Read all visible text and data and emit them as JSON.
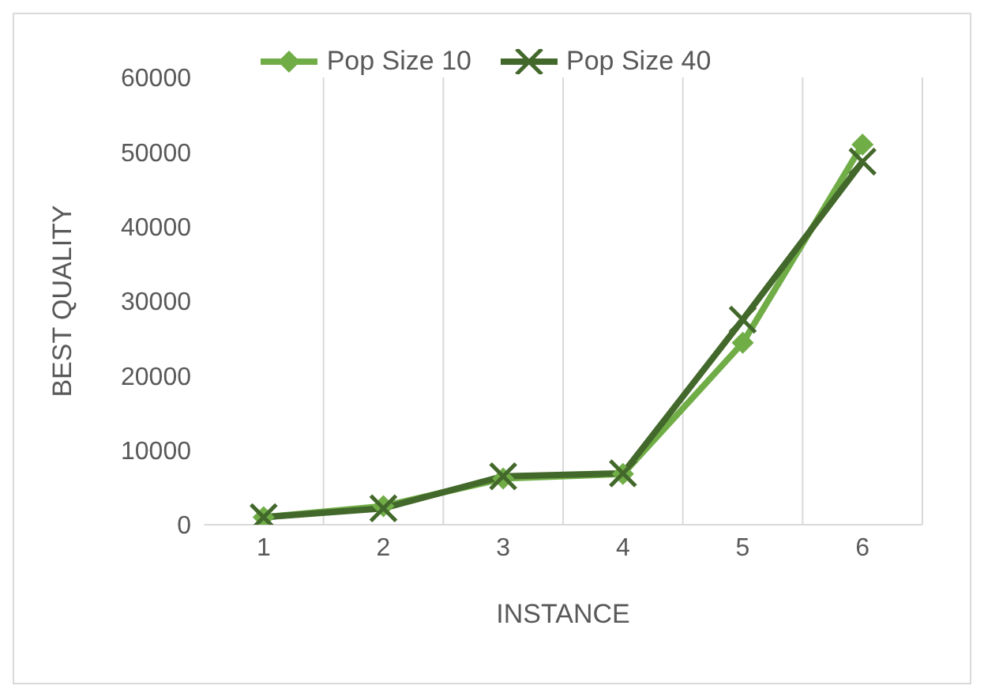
{
  "chart_data": {
    "type": "line",
    "xlabel": "INSTANCE",
    "ylabel": "BEST QUALITY",
    "categories": [
      "1",
      "2",
      "3",
      "4",
      "5",
      "6"
    ],
    "series": [
      {
        "name": "Pop Size 10",
        "color": "#70ad47",
        "marker": "diamond",
        "values": [
          1000,
          2500,
          6200,
          6800,
          24400,
          51000
        ]
      },
      {
        "name": "Pop Size 40",
        "color": "#43682b",
        "marker": "cross",
        "values": [
          1000,
          2200,
          6500,
          6900,
          27500,
          48700
        ]
      }
    ],
    "ylim": [
      0,
      60000
    ],
    "yticks": [
      0,
      10000,
      20000,
      30000,
      40000,
      50000,
      60000
    ],
    "grid": "x",
    "legend": "top"
  }
}
